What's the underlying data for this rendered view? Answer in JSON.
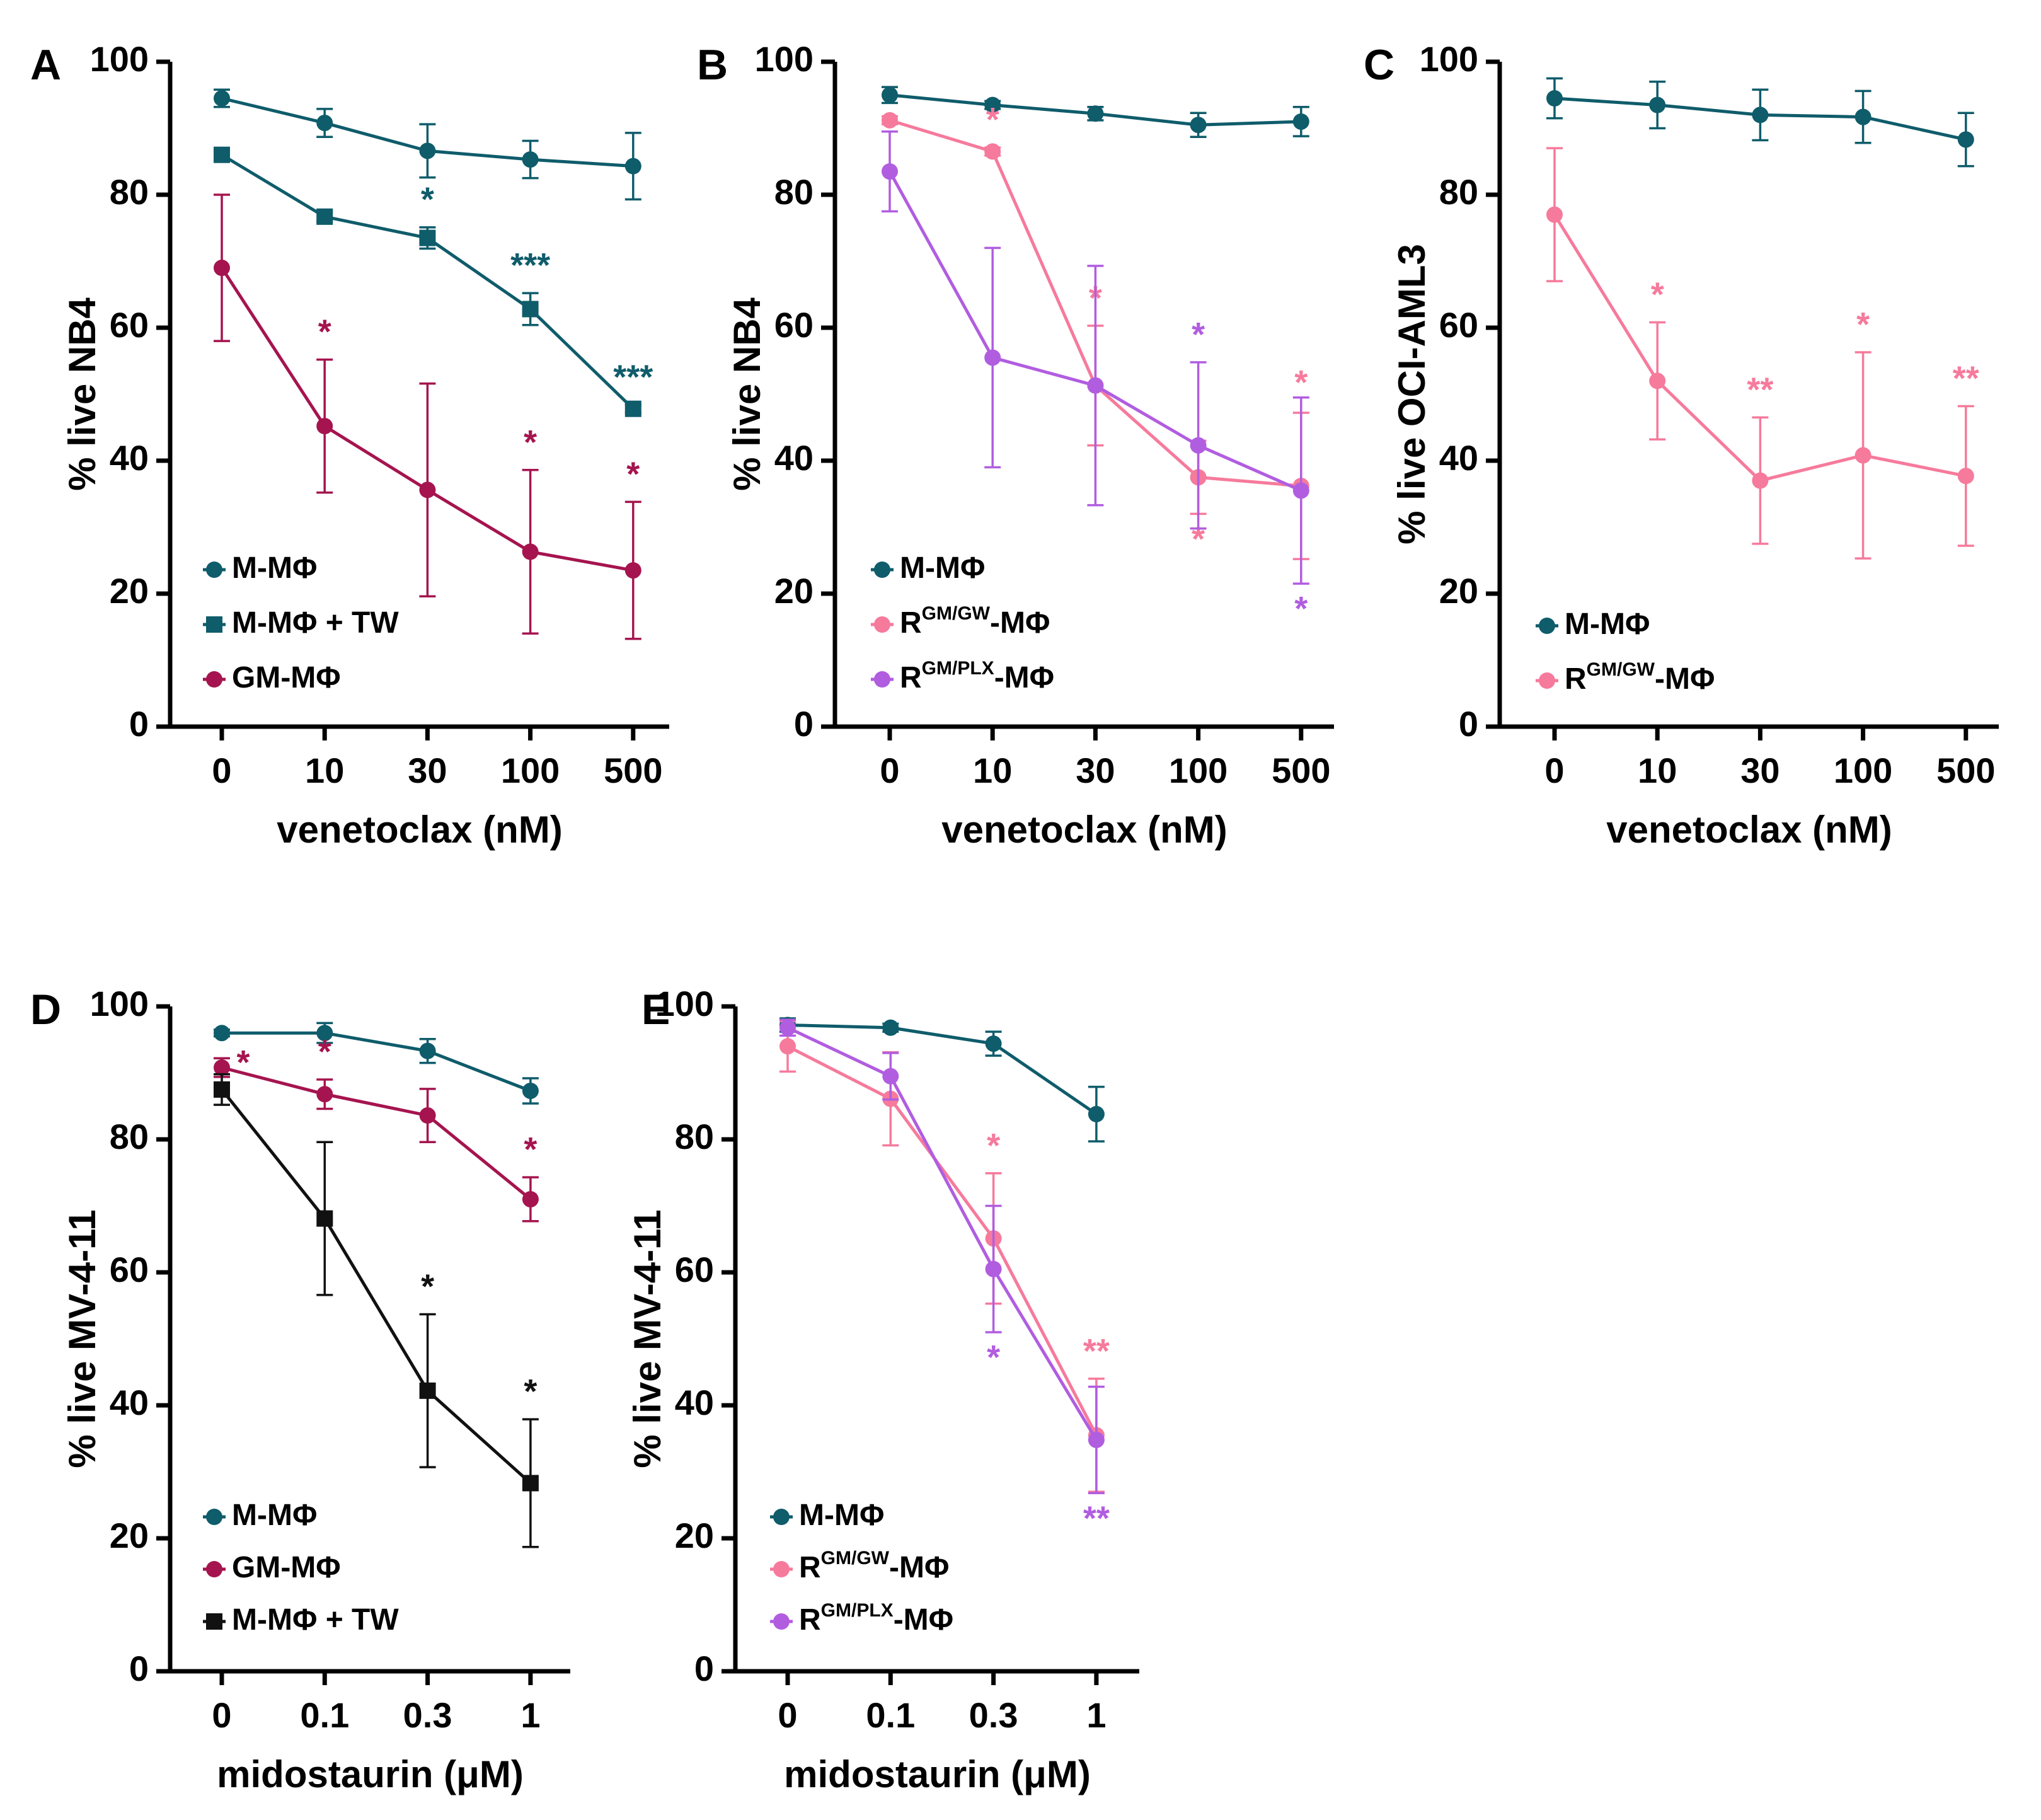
{
  "colors": {
    "teal": "#0F5C6B",
    "black": "#111111",
    "maroon": "#A5144F",
    "pink": "#F67A9C",
    "purple": "#B15DE0"
  },
  "chart_data": [
    {
      "id": "A",
      "type": "line",
      "panel_label": "A",
      "title": "",
      "xlabel": "venetoclax (nM)",
      "ylabel": "% live NB4",
      "categories": [
        "0",
        "10",
        "30",
        "100",
        "500"
      ],
      "ylim": [
        0,
        100
      ],
      "yticks": [
        "0",
        "20",
        "40",
        "60",
        "80",
        "100"
      ],
      "legend_position": "bottom-left",
      "series": [
        {
          "name": "M-MΦ",
          "color": "teal",
          "marker": "circle",
          "values": [
            94.5,
            90.8,
            86.6,
            85.3,
            84.3
          ],
          "errors": [
            1.3,
            2.1,
            4.0,
            2.8,
            5.0
          ],
          "sig": [
            "",
            "",
            "",
            "",
            ""
          ]
        },
        {
          "name": "M-MΦ + TW",
          "color": "teal",
          "marker": "square",
          "values": [
            86,
            76.7,
            73.5,
            62.8,
            47.8
          ],
          "errors": [
            0.6,
            0.7,
            1.6,
            2.4,
            0.6
          ],
          "sig": [
            "",
            "",
            "*",
            "***",
            "***"
          ]
        },
        {
          "name": "GM-MΦ",
          "color": "maroon",
          "marker": "circle",
          "values": [
            69,
            45.2,
            35.6,
            26.3,
            23.5
          ],
          "errors": [
            11,
            10,
            16,
            12.3,
            10.3
          ],
          "sig": [
            "",
            "*",
            "",
            "*",
            "*"
          ]
        }
      ],
      "legend": [
        {
          "name": "M-MΦ",
          "prefix": "M-MΦ",
          "sup": "",
          "suffix": "",
          "color": "teal",
          "marker": "circle"
        },
        {
          "name": "M-MΦ + TW",
          "prefix": "M-MΦ + TW",
          "sup": "",
          "suffix": "",
          "color": "teal",
          "marker": "square"
        },
        {
          "name": "GM-MΦ",
          "prefix": "GM-MΦ",
          "sup": "",
          "suffix": "",
          "color": "maroon",
          "marker": "circle"
        }
      ]
    },
    {
      "id": "B",
      "type": "line",
      "panel_label": "B",
      "title": "",
      "xlabel": "venetoclax (nM)",
      "ylabel": "% live NB4",
      "categories": [
        "0",
        "10",
        "30",
        "100",
        "500"
      ],
      "ylim": [
        0,
        100
      ],
      "yticks": [
        "0",
        "20",
        "40",
        "60",
        "80",
        "100"
      ],
      "legend_position": "bottom-left",
      "series": [
        {
          "name": "M-MΦ",
          "color": "teal",
          "marker": "circle",
          "values": [
            95,
            93.5,
            92.2,
            90.5,
            91
          ],
          "errors": [
            1.2,
            0.6,
            1.0,
            1.8,
            2.2
          ],
          "sig": [
            "",
            "",
            "",
            "",
            ""
          ]
        },
        {
          "name": "RGM/GW-MΦ",
          "color": "pink",
          "marker": "circle",
          "values": [
            91.2,
            86.5,
            51.3,
            37.5,
            36.2
          ],
          "errors": [
            0.6,
            0.6,
            9.0,
            5.5,
            11
          ],
          "sig": [
            "",
            "*",
            "*",
            "*",
            "*"
          ]
        },
        {
          "name": "RGM/PLX-MΦ",
          "color": "purple",
          "marker": "circle",
          "values": [
            83.5,
            55.5,
            51.3,
            42.3,
            35.5
          ],
          "errors": [
            6.0,
            16.5,
            18.0,
            12.5,
            14.0
          ],
          "sig": [
            "",
            "",
            "",
            "*",
            "*"
          ]
        }
      ],
      "legend": [
        {
          "name": "M-MΦ",
          "prefix": "M-MΦ",
          "sup": "",
          "suffix": "",
          "color": "teal",
          "marker": "circle"
        },
        {
          "name": "RGM/GW-MΦ",
          "prefix": "R",
          "sup": "GM/GW",
          "suffix": "-MΦ",
          "color": "pink",
          "marker": "circle"
        },
        {
          "name": "RGM/PLX-MΦ",
          "prefix": "R",
          "sup": "GM/PLX",
          "suffix": "-MΦ",
          "color": "purple",
          "marker": "circle"
        }
      ]
    },
    {
      "id": "C",
      "type": "line",
      "panel_label": "C",
      "title": "",
      "xlabel": "venetoclax (nM)",
      "ylabel": "% live OCI-AML3",
      "categories": [
        "0",
        "10",
        "30",
        "100",
        "500"
      ],
      "ylim": [
        0,
        100
      ],
      "yticks": [
        "0",
        "20",
        "40",
        "60",
        "80",
        "100"
      ],
      "legend_position": "bottom-left",
      "series": [
        {
          "name": "M-MΦ",
          "color": "teal",
          "marker": "circle",
          "values": [
            94.5,
            93.5,
            92,
            91.7,
            88.3
          ],
          "errors": [
            3.0,
            3.5,
            3.8,
            3.9,
            4.0
          ],
          "sig": [
            "",
            "",
            "",
            "",
            ""
          ]
        },
        {
          "name": "RGM/GW-MΦ",
          "color": "pink",
          "marker": "circle",
          "values": [
            77,
            52,
            37,
            40.8,
            37.7
          ],
          "errors": [
            10,
            8.8,
            9.5,
            15.5,
            10.5
          ],
          "sig": [
            "",
            "*",
            "**",
            "*",
            "**"
          ]
        }
      ],
      "legend": [
        {
          "name": "M-MΦ",
          "prefix": "M-MΦ",
          "sup": "",
          "suffix": "",
          "color": "teal",
          "marker": "circle"
        },
        {
          "name": "RGM/GW-MΦ",
          "prefix": "R",
          "sup": "GM/GW",
          "suffix": "-MΦ",
          "color": "pink",
          "marker": "circle"
        }
      ]
    },
    {
      "id": "D",
      "type": "line",
      "panel_label": "D",
      "title": "",
      "xlabel": "midostaurin (μM)",
      "ylabel": "% live MV-4-11",
      "categories": [
        "0",
        "0.1",
        "0.3",
        "1"
      ],
      "ylim": [
        0,
        100
      ],
      "yticks": [
        "0",
        "20",
        "40",
        "60",
        "80",
        "100"
      ],
      "legend_position": "bottom-left",
      "series": [
        {
          "name": "M-MΦ",
          "color": "teal",
          "marker": "circle",
          "values": [
            96,
            96,
            93.3,
            87.3
          ],
          "errors": [
            0.5,
            1.5,
            1.8,
            1.9
          ],
          "sig": [
            "",
            "",
            "",
            ""
          ]
        },
        {
          "name": "GM-MΦ",
          "color": "maroon",
          "marker": "circle",
          "values": [
            90.8,
            86.8,
            83.6,
            71
          ],
          "errors": [
            1.4,
            2.2,
            4.0,
            3.3
          ],
          "sig": [
            "*",
            "*",
            "",
            "*"
          ]
        },
        {
          "name": "M-MΦ + TW",
          "color": "black",
          "marker": "square",
          "values": [
            87.5,
            68.1,
            42.2,
            28.3
          ],
          "errors": [
            2.3,
            11.5,
            11.5,
            9.6
          ],
          "sig": [
            "",
            "",
            "*",
            "*"
          ]
        }
      ],
      "legend": [
        {
          "name": "M-MΦ",
          "prefix": "M-MΦ",
          "sup": "",
          "suffix": "",
          "color": "teal",
          "marker": "circle"
        },
        {
          "name": "GM-MΦ",
          "prefix": "GM-MΦ",
          "sup": "",
          "suffix": "",
          "color": "maroon",
          "marker": "circle"
        },
        {
          "name": "M-MΦ + TW",
          "prefix": "M-MΦ + TW",
          "sup": "",
          "suffix": "",
          "color": "black",
          "marker": "square"
        }
      ]
    },
    {
      "id": "E",
      "type": "line",
      "panel_label": "E",
      "title": "",
      "xlabel": "midostaurin (μM)",
      "ylabel": "% live MV-4-11",
      "categories": [
        "0",
        "0.1",
        "0.3",
        "1"
      ],
      "ylim": [
        0,
        100
      ],
      "yticks": [
        "0",
        "20",
        "40",
        "60",
        "80",
        "100"
      ],
      "legend_position": "bottom-left",
      "series": [
        {
          "name": "M-MΦ",
          "color": "teal",
          "marker": "circle",
          "values": [
            97.2,
            96.8,
            94.4,
            83.8
          ],
          "errors": [
            1.0,
            0.6,
            1.8,
            4.1
          ],
          "sig": [
            "",
            "",
            "",
            ""
          ]
        },
        {
          "name": "RGM/GW-MΦ",
          "color": "pink",
          "marker": "circle",
          "values": [
            94,
            86.1,
            65.1,
            35.5
          ],
          "errors": [
            3.8,
            7.0,
            9.8,
            8.5
          ],
          "sig": [
            "",
            "",
            "*",
            "**"
          ]
        },
        {
          "name": "RGM/PLX-MΦ",
          "color": "purple",
          "marker": "circle",
          "values": [
            96.8,
            89.5,
            60.5,
            34.8
          ],
          "errors": [
            1.2,
            3.5,
            9.5,
            8.0
          ],
          "sig": [
            "",
            "",
            "*",
            "**"
          ]
        }
      ],
      "legend": [
        {
          "name": "M-MΦ",
          "prefix": "M-MΦ",
          "sup": "",
          "suffix": "",
          "color": "teal",
          "marker": "circle"
        },
        {
          "name": "RGM/GW-MΦ",
          "prefix": "R",
          "sup": "GM/GW",
          "suffix": "-MΦ",
          "color": "pink",
          "marker": "circle"
        },
        {
          "name": "RGM/PLX-MΦ",
          "prefix": "R",
          "sup": "GM/PLX",
          "suffix": "-MΦ",
          "color": "purple",
          "marker": "circle"
        }
      ]
    }
  ]
}
